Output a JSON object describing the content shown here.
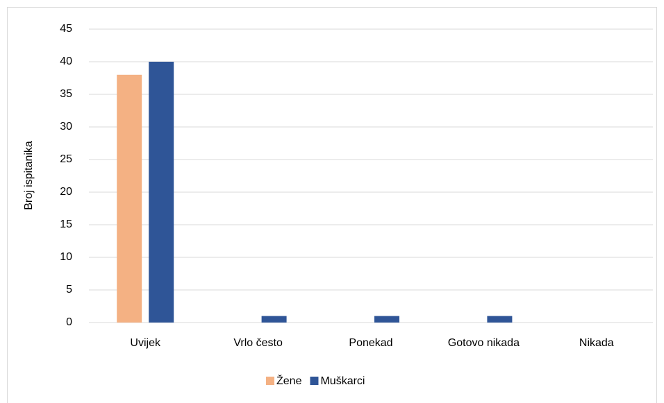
{
  "chart_data": {
    "type": "bar",
    "y_label": "Broj ispitanika",
    "categories": [
      "Uvijek",
      "Vrlo često",
      "Ponekad",
      "Gotovo nikada",
      "Nikada"
    ],
    "series": [
      {
        "name": "Žene",
        "color": "#f4b183",
        "values": [
          38,
          0,
          0,
          0,
          0
        ]
      },
      {
        "name": "Muškarci",
        "color": "#2f5597",
        "values": [
          40,
          1,
          1,
          1,
          0
        ]
      }
    ],
    "ylim": [
      0,
      45
    ],
    "yticks": [
      0,
      5,
      10,
      15,
      20,
      25,
      30,
      35,
      40,
      45
    ],
    "grid": true,
    "legend": "bottom"
  }
}
